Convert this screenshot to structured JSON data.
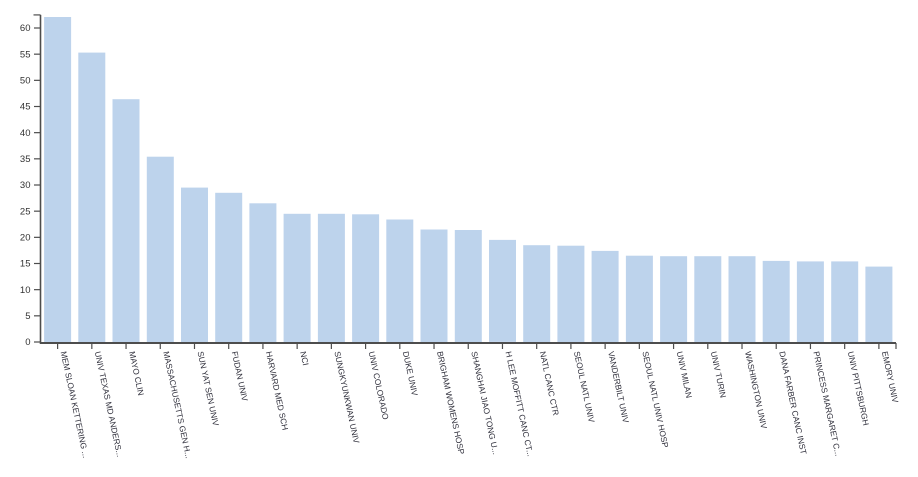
{
  "chart_data": {
    "type": "bar",
    "title": "",
    "xlabel": "",
    "ylabel": "",
    "categories": [
      "MEM SLOAN KETTERING ...",
      "UNIV TEXAS MD ANDERS...",
      "MAYO CLIN",
      "MASSACHUSETTS GEN H...",
      "SUN YAT SEN UNIV",
      "FUDAN UNIV",
      "HARVARD MED SCH",
      "NCI",
      "SUNGKYUNKWAN UNIV",
      "UNIV COLORADO",
      "DUKE UNIV",
      "BRIGHAM WOMENS HOSP",
      "SHANGHAI JIAO TONG U...",
      "H LEE MOFFITT CANC CT...",
      "NATL CANC CTR",
      "SEOUL NATL UNIV",
      "VANDERBILT UNIV",
      "SEOUL NATL UNIV HOSP",
      "UNIV MILAN",
      "UNIV TURIN",
      "WASHINGTON UNIV",
      "DANA FARBER CANC INST",
      "PRINCESS MARGARET C...",
      "UNIV PITTSBURGH",
      "EMORY UNIV"
    ],
    "values": [
      62.1,
      55.3,
      46.4,
      35.4,
      29.5,
      28.5,
      26.5,
      24.5,
      24.5,
      24.4,
      23.4,
      21.5,
      21.4,
      19.5,
      18.5,
      18.4,
      17.4,
      16.5,
      16.4,
      16.4,
      16.4,
      15.5,
      15.4,
      15.4,
      14.4
    ],
    "ylim": [
      0,
      62.5
    ],
    "yticks": [
      0,
      5,
      10,
      15,
      20,
      25,
      30,
      35,
      40,
      45,
      50,
      55,
      60
    ],
    "grid": false,
    "legend": null,
    "colors": {
      "bar_fill": "#bdd3ec",
      "axis_line": "#4d4d4d",
      "y_tick_text": "#333333",
      "x_label_text": "#30303c",
      "background": "#ffffff"
    }
  }
}
